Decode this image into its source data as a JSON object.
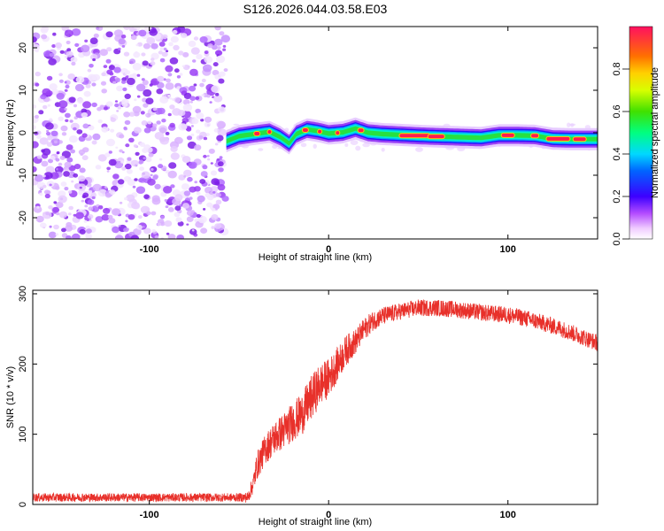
{
  "title": "S126.2026.044.03.58.E03",
  "chart_data": [
    {
      "type": "heatmap",
      "title": "S126.2026.044.03.58.E03",
      "xlabel": "Height of straight line (km)",
      "ylabel": "Frequency (Hz)",
      "xlim": [
        -165,
        150
      ],
      "ylim": [
        -25,
        25
      ],
      "xticks": [
        -100,
        0,
        100
      ],
      "yticks": [
        -20,
        -10,
        0,
        10,
        20
      ],
      "xtick_labels": [
        "-100",
        "0",
        "100"
      ],
      "ytick_labels": [
        "-20",
        "-10",
        "0",
        "10",
        "20"
      ],
      "noise_region_x": [
        -165,
        -57
      ],
      "signal_region_x": [
        -57,
        150
      ],
      "ridge": {
        "x": [
          -57,
          -50,
          -40,
          -33,
          -27,
          -22,
          -18,
          -12,
          -6,
          0,
          8,
          15,
          22,
          30,
          40,
          55,
          70,
          85,
          95,
          105,
          115,
          125,
          135,
          150
        ],
        "freq": [
          -2,
          -0.8,
          -0.2,
          0.2,
          -1,
          -2.5,
          -0.3,
          0.8,
          0.4,
          -0.2,
          0.1,
          1.0,
          0,
          -0.3,
          -0.5,
          -0.8,
          -1.0,
          -1.2,
          -0.6,
          -0.6,
          -0.7,
          -1.4,
          -1.5,
          -1.5
        ]
      },
      "colorbar": {
        "label": "Normalized spectral amplitude",
        "range": [
          0,
          1
        ],
        "ticks": [
          0.0,
          0.2,
          0.4,
          0.6,
          0.8
        ],
        "tick_labels": [
          "0.0",
          "0.2",
          "0.4",
          "0.6",
          "0.8"
        ]
      }
    },
    {
      "type": "line",
      "xlabel": "Height of straight line (km)",
      "ylabel": "SNR (10 * v/v)",
      "xlim": [
        -165,
        150
      ],
      "ylim": [
        0,
        305
      ],
      "xticks": [
        -100,
        0,
        100
      ],
      "yticks": [
        0,
        100,
        200,
        300
      ],
      "xtick_labels": [
        "-100",
        "0",
        "100"
      ],
      "ytick_labels": [
        "0",
        "100",
        "200",
        "300"
      ],
      "series": [
        {
          "name": "SNR",
          "color": "#e8302a",
          "x": [
            -165,
            -120,
            -80,
            -50,
            -45,
            -42,
            -40,
            -35,
            -30,
            -25,
            -20,
            -15,
            -10,
            -5,
            0,
            5,
            10,
            15,
            20,
            25,
            30,
            40,
            50,
            60,
            70,
            80,
            90,
            100,
            110,
            120,
            130,
            140,
            150
          ],
          "values": [
            10,
            10,
            10,
            10,
            10,
            30,
            55,
            80,
            95,
            105,
            118,
            128,
            150,
            170,
            180,
            200,
            220,
            232,
            250,
            262,
            268,
            275,
            280,
            280,
            278,
            275,
            272,
            270,
            265,
            258,
            250,
            240,
            230
          ],
          "noise_amplitude": [
            6,
            6,
            6,
            6,
            8,
            14,
            20,
            22,
            24,
            26,
            28,
            30,
            32,
            30,
            28,
            24,
            22,
            18,
            16,
            14,
            13,
            12,
            12,
            12,
            12,
            12,
            12,
            12,
            12,
            12,
            12,
            12,
            12
          ]
        }
      ]
    }
  ]
}
